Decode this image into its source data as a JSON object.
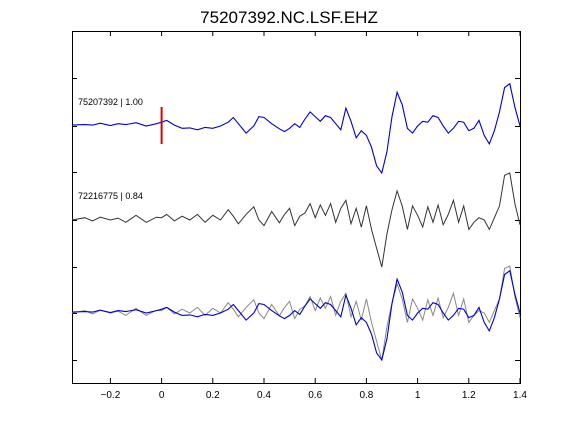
{
  "chart_data": {
    "type": "line",
    "title": "75207392.NC.LSF.EHZ",
    "xlim": [
      -0.35,
      1.4
    ],
    "xticks": [
      -0.2,
      0,
      0.2,
      0.4,
      0.6,
      0.8,
      1,
      1.2,
      1.4
    ],
    "xtick_labels": [
      "−0.2",
      "0",
      "0.2",
      "0.4",
      "0.6",
      "0.8",
      "1",
      "1.2",
      "1.4"
    ],
    "grid": false,
    "pick_time": 0,
    "pick_color": "#dd0000",
    "colors": {
      "master": "#0000cc",
      "correlated": "#333333",
      "overlay_gray": "#888888"
    },
    "traces": [
      {
        "label": "75207392 | 1.00",
        "color": "#0000cc"
      },
      {
        "label": "72216775 | 0.84",
        "color": "#333333"
      }
    ],
    "series": [
      {
        "name": "75207392",
        "x": [
          -0.35,
          -0.3,
          -0.27,
          -0.24,
          -0.2,
          -0.17,
          -0.14,
          -0.1,
          -0.06,
          -0.02,
          0.0,
          0.02,
          0.05,
          0.08,
          0.11,
          0.14,
          0.17,
          0.2,
          0.23,
          0.26,
          0.28,
          0.3,
          0.33,
          0.36,
          0.38,
          0.4,
          0.43,
          0.46,
          0.48,
          0.5,
          0.52,
          0.54,
          0.56,
          0.58,
          0.6,
          0.62,
          0.64,
          0.66,
          0.68,
          0.7,
          0.72,
          0.74,
          0.76,
          0.78,
          0.8,
          0.82,
          0.84,
          0.86,
          0.88,
          0.9,
          0.92,
          0.94,
          0.96,
          0.98,
          1.0,
          1.02,
          1.04,
          1.06,
          1.08,
          1.1,
          1.12,
          1.14,
          1.16,
          1.18,
          1.2,
          1.22,
          1.24,
          1.26,
          1.28,
          1.3,
          1.32,
          1.34,
          1.36,
          1.38,
          1.4
        ],
        "y": [
          0.02,
          0.03,
          0.02,
          0.06,
          0.01,
          0.05,
          0.03,
          0.07,
          0.0,
          0.05,
          0.08,
          0.12,
          0.02,
          -0.05,
          -0.04,
          -0.08,
          -0.03,
          -0.05,
          0.0,
          0.08,
          0.18,
          0.05,
          -0.15,
          0.0,
          0.2,
          0.18,
          0.05,
          -0.06,
          -0.12,
          -0.05,
          0.05,
          -0.03,
          0.15,
          0.3,
          0.2,
          0.1,
          0.22,
          0.18,
          0.05,
          -0.08,
          0.38,
          0.1,
          -0.25,
          -0.1,
          -0.2,
          -0.45,
          -0.85,
          -1.0,
          -0.55,
          0.2,
          0.72,
          0.45,
          -0.05,
          -0.15,
          0.0,
          0.1,
          0.08,
          0.22,
          0.18,
          0.0,
          -0.15,
          -0.05,
          0.1,
          0.08,
          -0.1,
          -0.05,
          0.12,
          -0.2,
          -0.38,
          -0.1,
          0.3,
          0.82,
          0.9,
          0.4,
          0.0
        ]
      },
      {
        "name": "72216775",
        "x": [
          -0.35,
          -0.3,
          -0.27,
          -0.24,
          -0.2,
          -0.17,
          -0.14,
          -0.1,
          -0.06,
          -0.02,
          0.0,
          0.02,
          0.05,
          0.08,
          0.11,
          0.14,
          0.17,
          0.2,
          0.23,
          0.26,
          0.28,
          0.3,
          0.33,
          0.36,
          0.38,
          0.4,
          0.43,
          0.46,
          0.48,
          0.5,
          0.52,
          0.54,
          0.56,
          0.58,
          0.6,
          0.62,
          0.64,
          0.66,
          0.68,
          0.7,
          0.72,
          0.74,
          0.76,
          0.78,
          0.8,
          0.82,
          0.84,
          0.86,
          0.88,
          0.9,
          0.92,
          0.94,
          0.96,
          0.98,
          1.0,
          1.02,
          1.04,
          1.06,
          1.08,
          1.1,
          1.12,
          1.14,
          1.16,
          1.18,
          1.2,
          1.22,
          1.24,
          1.26,
          1.28,
          1.3,
          1.32,
          1.34,
          1.36,
          1.38,
          1.4
        ],
        "y": [
          0.0,
          0.05,
          -0.02,
          0.06,
          0.0,
          0.04,
          -0.05,
          0.1,
          -0.05,
          0.06,
          0.05,
          0.12,
          -0.02,
          0.08,
          0.0,
          0.12,
          -0.05,
          0.1,
          0.0,
          0.22,
          0.08,
          -0.08,
          0.12,
          0.28,
          0.0,
          -0.12,
          0.18,
          -0.06,
          0.12,
          0.25,
          -0.12,
          0.08,
          0.15,
          0.35,
          0.05,
          0.32,
          0.1,
          0.35,
          -0.05,
          0.25,
          0.42,
          -0.08,
          0.25,
          -0.15,
          0.3,
          -0.2,
          -0.6,
          -1.0,
          -0.3,
          0.22,
          0.62,
          0.3,
          -0.2,
          0.3,
          0.1,
          -0.15,
          0.28,
          -0.05,
          0.32,
          -0.1,
          0.12,
          0.42,
          -0.05,
          0.3,
          -0.2,
          -0.05,
          0.05,
          0.0,
          -0.2,
          0.05,
          0.3,
          0.95,
          1.0,
          0.35,
          -0.1
        ]
      }
    ]
  }
}
